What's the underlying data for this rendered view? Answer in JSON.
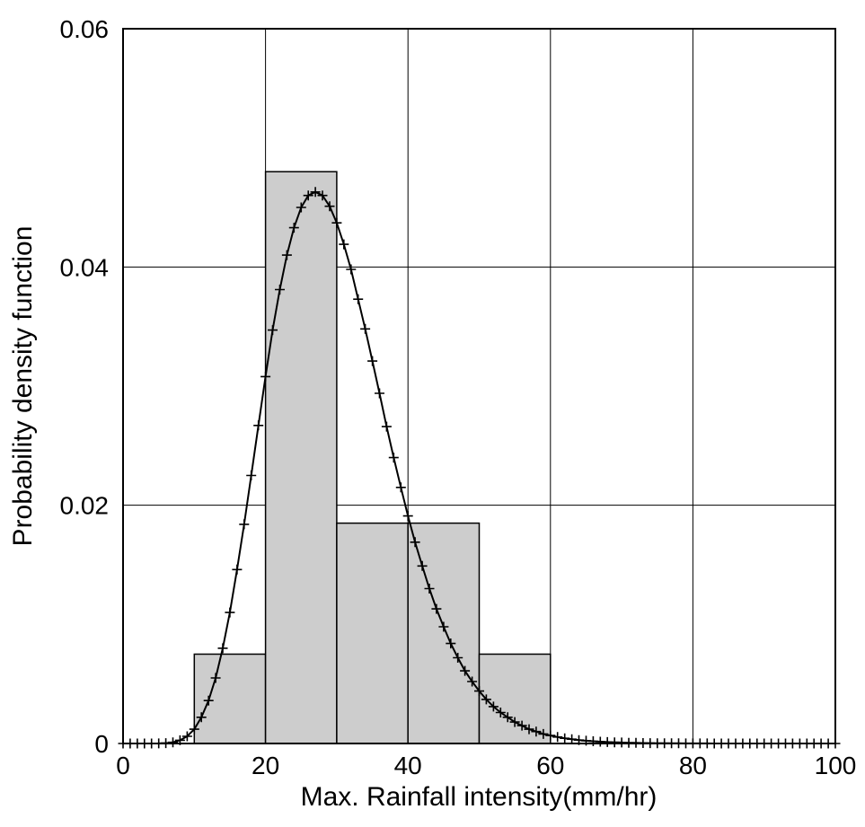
{
  "chart_data": {
    "type": "bar",
    "subtype": "histogram-with-fitted-pdf-curve",
    "title": "",
    "xlabel": "Max. Rainfall intensity(mm/hr)",
    "ylabel": "Probability density function",
    "xlim": [
      0,
      100
    ],
    "ylim": [
      0,
      0.06
    ],
    "grid": true,
    "legend": "none",
    "x_ticks": [
      0,
      20,
      40,
      60,
      80,
      100
    ],
    "x_tick_labels": [
      "0",
      "20",
      "40",
      "60",
      "80",
      "100"
    ],
    "y_ticks": [
      0,
      0.02,
      0.04,
      0.06
    ],
    "y_tick_labels": [
      "0",
      "0.02",
      "0.04",
      "0.06"
    ],
    "colors": {
      "bar_fill": "#cdcdcd",
      "line": "#000000",
      "background": "#ffffff"
    },
    "histogram": {
      "bin_edges": [
        10,
        20,
        30,
        40,
        50,
        60
      ],
      "densities": [
        0.0075,
        0.048,
        0.0185,
        0.0185,
        0.0075
      ]
    },
    "curve": {
      "marker": "+",
      "x_start": 0,
      "x_step": 1,
      "peak_x": 27,
      "peak_y": 0.0463,
      "y": [
        0,
        0,
        0,
        1e-06,
        2e-06,
        8e-06,
        3e-05,
        0.0001,
        0.00027,
        0.0006,
        0.0012,
        0.0022,
        0.0036,
        0.0055,
        0.008,
        0.011,
        0.0146,
        0.0184,
        0.0225,
        0.0267,
        0.0308,
        0.0347,
        0.0381,
        0.041,
        0.0433,
        0.045,
        0.046,
        0.0463,
        0.046,
        0.0451,
        0.0437,
        0.0419,
        0.0398,
        0.0373,
        0.0348,
        0.0321,
        0.0294,
        0.0266,
        0.024,
        0.0215,
        0.0191,
        0.0169,
        0.0149,
        0.013,
        0.0113,
        0.0098,
        0.0084,
        0.0072,
        0.0061,
        0.0052,
        0.0044,
        0.0037,
        0.0031,
        0.0026,
        0.0022,
        0.0018,
        0.0015,
        0.0012,
        0.001,
        0.0008,
        0.00067,
        0.00054,
        0.00044,
        0.00036,
        0.00029,
        0.00023,
        0.00019,
        0.00015,
        0.00012,
        0.0001,
        8e-05,
        6e-05,
        5e-05,
        4e-05,
        3e-05,
        2.4e-05,
        2e-05,
        1.6e-05,
        1.2e-05,
        1e-05,
        7e-06,
        6e-06,
        4e-06,
        3e-06,
        3e-06,
        2e-06,
        2e-06,
        1e-06,
        1e-06,
        1e-06,
        1e-06,
        0,
        0,
        0,
        0,
        0,
        0,
        0,
        0,
        0,
        0
      ]
    }
  }
}
